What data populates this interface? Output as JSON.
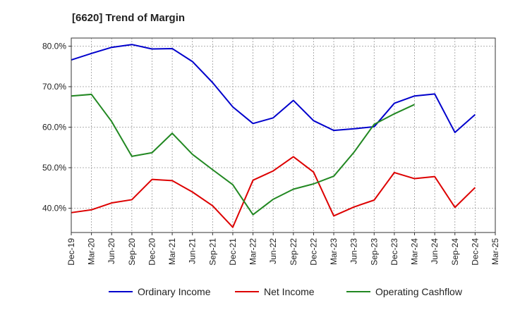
{
  "chart_data": {
    "type": "line",
    "title": "[6620]  Trend of Margin",
    "xlabel": "",
    "ylabel": "",
    "x": [
      "Dec-19",
      "Mar-20",
      "Jun-20",
      "Sep-20",
      "Dec-20",
      "Mar-21",
      "Jun-21",
      "Sep-21",
      "Dec-21",
      "Mar-22",
      "Jun-22",
      "Sep-22",
      "Dec-22",
      "Mar-23",
      "Jun-23",
      "Sep-23",
      "Dec-23",
      "Mar-24",
      "Jun-24",
      "Sep-24",
      "Dec-24",
      "Mar-25"
    ],
    "ylim": [
      34,
      82
    ],
    "yticks": [
      40,
      50,
      60,
      70,
      80
    ],
    "ytick_labels": [
      "40.0%",
      "50.0%",
      "60.0%",
      "70.0%",
      "80.0%"
    ],
    "grid": true,
    "legend_position": "bottom",
    "series": [
      {
        "name": "Ordinary Income",
        "color": "#0000cc",
        "values": [
          76.6,
          78.2,
          79.7,
          80.4,
          79.3,
          79.4,
          76.2,
          71.0,
          65.0,
          60.9,
          62.3,
          66.6,
          61.6,
          59.2,
          59.6,
          60.1,
          65.9,
          67.7,
          68.2,
          58.7,
          63.1,
          null
        ]
      },
      {
        "name": "Net Income",
        "color": "#dd0000",
        "values": [
          38.9,
          39.6,
          41.3,
          42.1,
          47.1,
          46.8,
          44.0,
          40.6,
          35.3,
          46.9,
          49.2,
          52.7,
          48.9,
          38.1,
          40.3,
          42.0,
          48.8,
          47.3,
          47.8,
          40.2,
          45.1,
          null
        ]
      },
      {
        "name": "Operating Cashflow",
        "color": "#228822",
        "values": [
          67.7,
          68.1,
          61.4,
          52.8,
          53.7,
          58.5,
          53.3,
          49.5,
          45.8,
          38.4,
          42.2,
          44.7,
          46.0,
          47.9,
          53.8,
          60.7,
          63.3,
          65.6,
          null,
          null,
          null,
          null
        ]
      }
    ]
  }
}
